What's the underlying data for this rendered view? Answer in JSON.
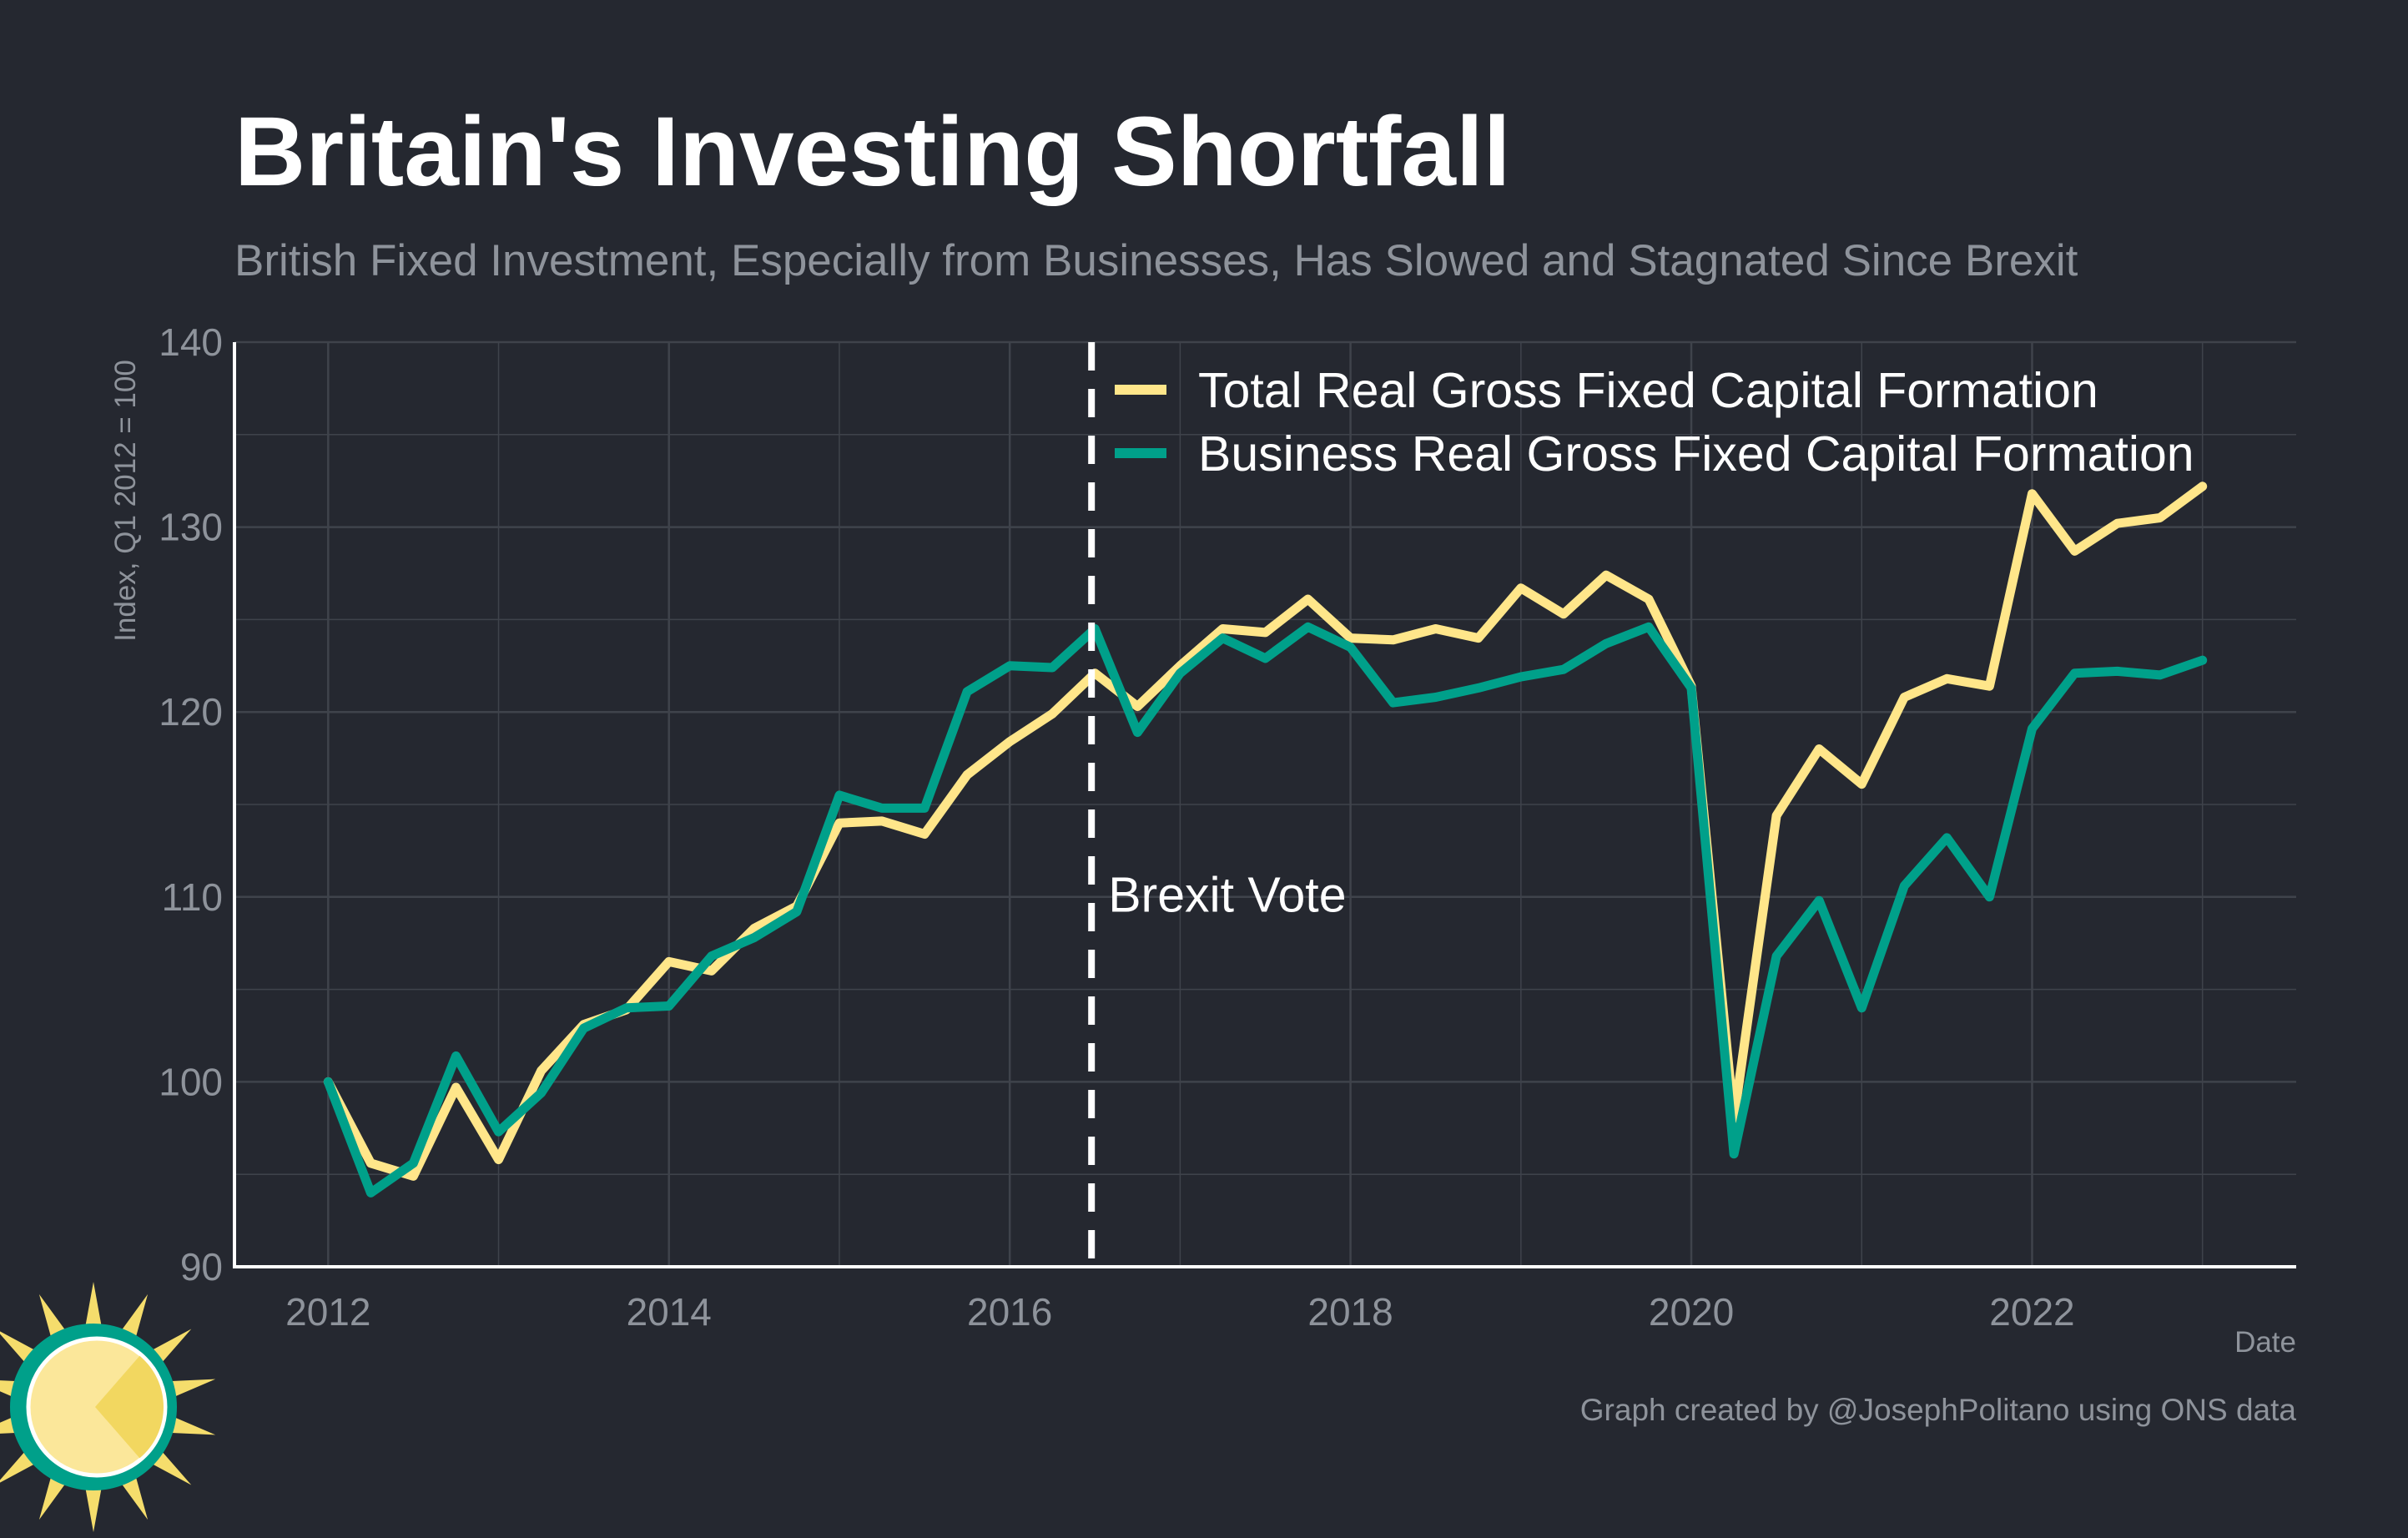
{
  "chart_data": {
    "type": "line",
    "title": "Britain's Investing Shortfall",
    "subtitle": "British Fixed Investment, Especially from Businesses, Has Slowed and Stagnated Since Brexit",
    "xlabel": "Date",
    "ylabel": "Index, Q1 2012 = 100",
    "xlim": [
      2011.45,
      2023.55
    ],
    "ylim": [
      90,
      140
    ],
    "x_ticks": [
      2012,
      2014,
      2016,
      2018,
      2020,
      2022
    ],
    "x_tick_labels": [
      "2012",
      "2014",
      "2016",
      "2018",
      "2020",
      "2022"
    ],
    "y_ticks": [
      90,
      100,
      110,
      120,
      130,
      140
    ],
    "y_tick_labels": [
      "90",
      "100",
      "110",
      "120",
      "130",
      "140"
    ],
    "grid": true,
    "legend_position": "top-right",
    "x": [
      2012.0,
      2012.25,
      2012.5,
      2012.75,
      2013.0,
      2013.25,
      2013.5,
      2013.75,
      2014.0,
      2014.25,
      2014.5,
      2014.75,
      2015.0,
      2015.25,
      2015.5,
      2015.75,
      2016.0,
      2016.25,
      2016.5,
      2016.75,
      2017.0,
      2017.25,
      2017.5,
      2017.75,
      2018.0,
      2018.25,
      2018.5,
      2018.75,
      2019.0,
      2019.25,
      2019.5,
      2019.75,
      2020.0,
      2020.25,
      2020.5,
      2020.75,
      2021.0,
      2021.25,
      2021.5,
      2021.75,
      2022.0,
      2022.25,
      2022.5,
      2022.75,
      2023.0
    ],
    "series": [
      {
        "name": "Total Real Gross Fixed Capital Formation",
        "color": "#ffe68a",
        "values": [
          100.0,
          95.6,
          94.9,
          99.7,
          95.8,
          100.6,
          103.1,
          103.9,
          106.5,
          106.0,
          108.3,
          109.5,
          114.0,
          114.1,
          113.4,
          116.6,
          118.4,
          119.9,
          122.1,
          120.3,
          122.5,
          124.5,
          124.3,
          126.1,
          124.0,
          123.9,
          124.5,
          124.0,
          126.7,
          125.3,
          127.4,
          126.1,
          121.4,
          98.0,
          114.4,
          118.0,
          116.1,
          120.8,
          121.8,
          121.4,
          131.8,
          128.7,
          130.2,
          130.5,
          132.2
        ]
      },
      {
        "name": "Business Real Gross Fixed Capital Formation",
        "color": "#00a08a",
        "values": [
          100.0,
          94.0,
          95.6,
          101.4,
          97.3,
          99.4,
          102.9,
          104.0,
          104.1,
          106.8,
          107.8,
          109.2,
          115.5,
          114.8,
          114.8,
          121.1,
          122.5,
          122.4,
          124.5,
          118.9,
          122.1,
          124.0,
          122.9,
          124.6,
          123.5,
          120.5,
          120.8,
          121.3,
          121.9,
          122.3,
          123.7,
          124.6,
          121.3,
          96.1,
          106.8,
          109.8,
          104.0,
          110.6,
          113.2,
          110.0,
          119.1,
          122.1,
          122.2,
          122.0,
          122.8
        ]
      }
    ],
    "annotations": [
      {
        "type": "vline",
        "x": 2016.48,
        "label": "Brexit Vote",
        "style": "dashed",
        "color": "#ffffff"
      }
    ]
  },
  "credit": "Graph created by @JosephPolitano using ONS data",
  "colors": {
    "background": "#252830",
    "grid": "#3f434b",
    "axis": "#ffffff",
    "muted_text": "#8e939b",
    "logo_sun": "#f5dd6c",
    "logo_face": "#fbe79a",
    "logo_ring": "#00a08a"
  }
}
